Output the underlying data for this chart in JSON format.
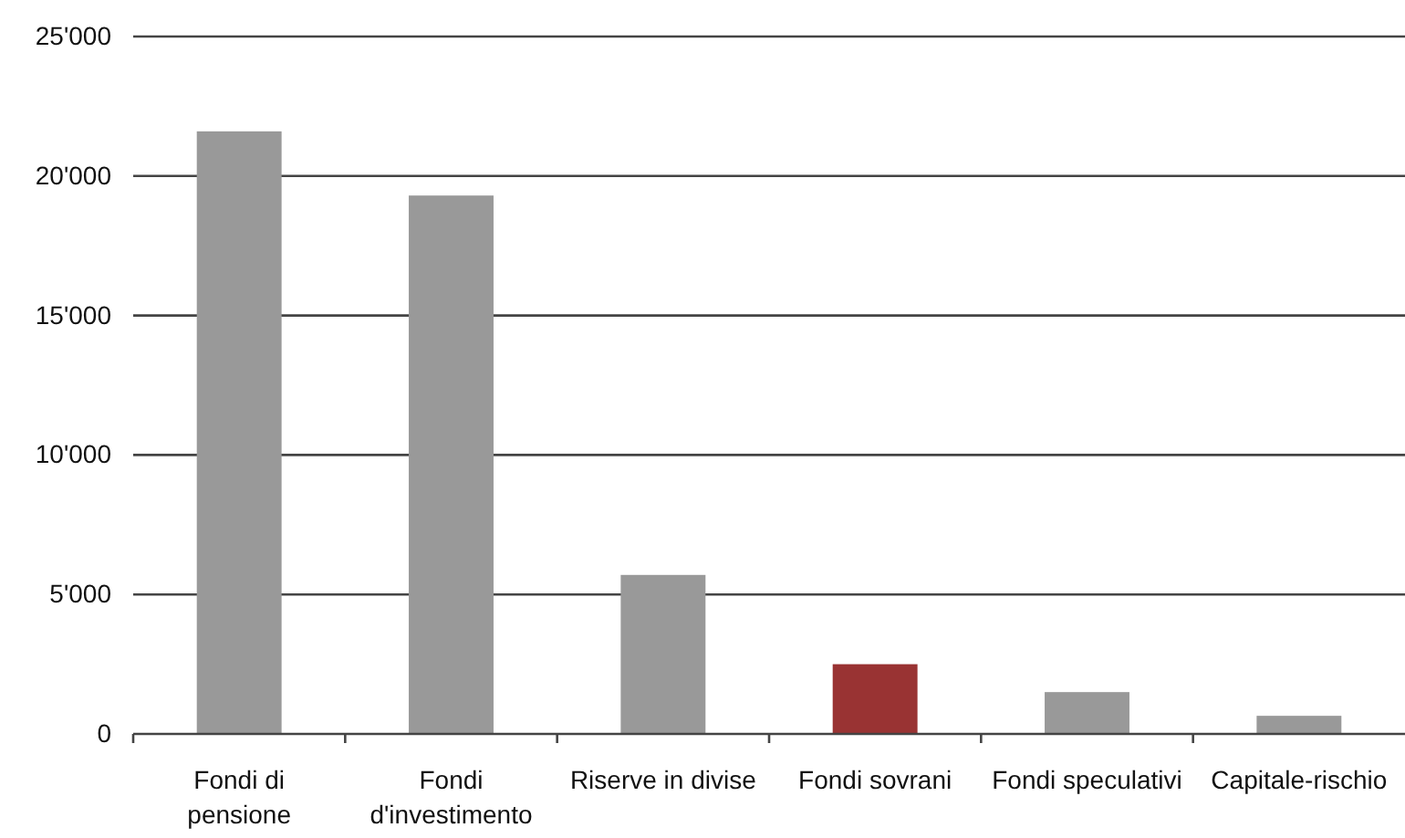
{
  "chart_data": {
    "type": "bar",
    "categories": [
      "Fondi di pensione",
      "Fondi d'investimento",
      "Riserve in divise",
      "Fondi sovrani",
      "Fondi speculativi",
      "Capitale-rischio"
    ],
    "values": [
      21600,
      19300,
      5700,
      2500,
      1500,
      650
    ],
    "colors": [
      "#999999",
      "#999999",
      "#999999",
      "#993333",
      "#999999",
      "#999999"
    ],
    "ylim": [
      0,
      25000
    ],
    "yticks": [
      0,
      {
        "value": 5000,
        "label": "5'000"
      },
      {
        "value": 10000,
        "label": "10'000"
      },
      {
        "value": 15000,
        "label": "15'000"
      },
      {
        "value": 20000,
        "label": "20'000"
      },
      {
        "value": 25000,
        "label": "25'000"
      }
    ],
    "grid": "y"
  }
}
